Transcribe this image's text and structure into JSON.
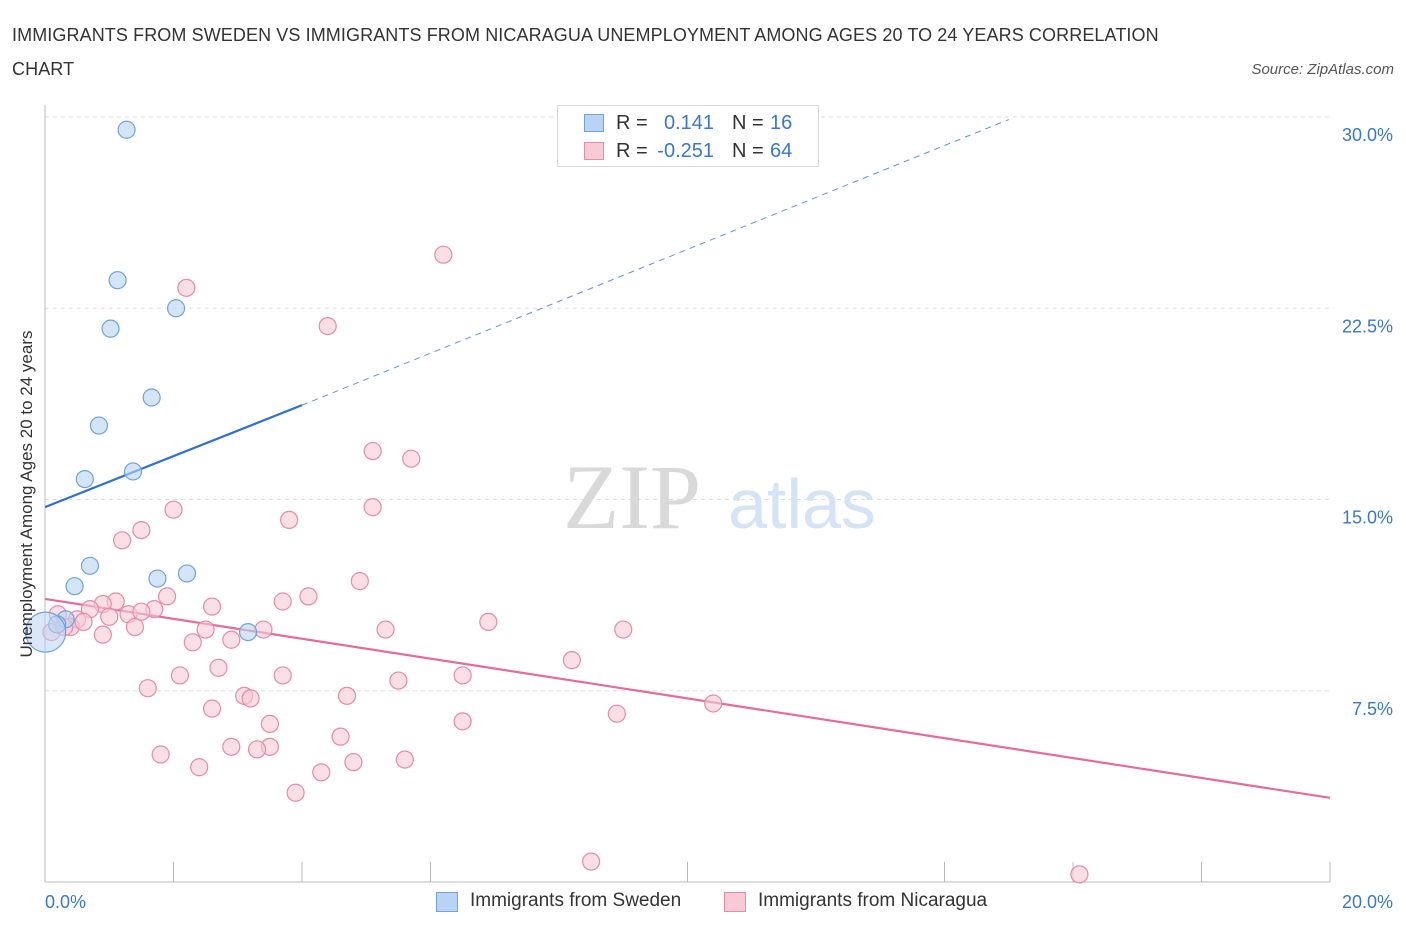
{
  "title": "IMMIGRANTS FROM SWEDEN VS IMMIGRANTS FROM NICARAGUA UNEMPLOYMENT AMONG AGES 20 TO 24 YEARS CORRELATION CHART",
  "source": "Source: ZipAtlas.com",
  "watermark": {
    "zip": "ZIP",
    "atlas": "atlas"
  },
  "legend_top": [
    {
      "r_label": "R =",
      "r_value": "0.141",
      "n_label": "N =",
      "n_value": "16",
      "color": "#6fa3e0",
      "fill": "#b9d3f4"
    },
    {
      "r_label": "R =",
      "r_value": "-0.251",
      "n_label": "N =",
      "n_value": "64",
      "color": "#e88aa8",
      "fill": "#f8c9d7"
    }
  ],
  "legend_bottom": [
    {
      "label": "Immigrants from Sweden",
      "color": "#6fa3e0",
      "fill": "#b9d3f4"
    },
    {
      "label": "Immigrants from Nicaragua",
      "color": "#e88aa8",
      "fill": "#f8c9d7"
    }
  ],
  "chart_data": {
    "type": "scatter",
    "title": "IMMIGRANTS FROM SWEDEN VS IMMIGRANTS FROM NICARAGUA UNEMPLOYMENT AMONG AGES 20 TO 24 YEARS CORRELATION CHART",
    "xlabel": "",
    "ylabel": "Unemployment Among Ages 20 to 24 years",
    "xlim": [
      0,
      20
    ],
    "ylim": [
      0,
      30
    ],
    "x_tick_labels": [
      {
        "value": 0,
        "label": "0.0%"
      },
      {
        "value": 20,
        "label": "20.0%"
      }
    ],
    "y_tick_labels": [
      {
        "value": 7.5,
        "label": "7.5%"
      },
      {
        "value": 15,
        "label": "15.0%"
      },
      {
        "value": 22.5,
        "label": "22.5%"
      },
      {
        "value": 30,
        "label": "30.0%"
      }
    ],
    "x_minor_ticks": [
      2,
      4,
      6,
      10,
      14,
      16,
      18
    ],
    "grid": true,
    "legend_position": "top-center",
    "series": [
      {
        "name": "Immigrants from Sweden",
        "color": "#6fa3e0",
        "fill": "#b9d3f4",
        "trend_color": "#2f6fcd",
        "trend": {
          "x0": 0,
          "y0": 14.7,
          "x1": 4.0,
          "y1": 18.7,
          "x_dash_end": 15.0,
          "y_dash_end": 29.9
        },
        "points": [
          {
            "x": 1.27,
            "y": 29.5
          },
          {
            "x": 1.13,
            "y": 23.6
          },
          {
            "x": 2.04,
            "y": 22.5
          },
          {
            "x": 1.02,
            "y": 21.7
          },
          {
            "x": 1.66,
            "y": 19.0
          },
          {
            "x": 0.84,
            "y": 17.9
          },
          {
            "x": 1.37,
            "y": 16.1
          },
          {
            "x": 0.62,
            "y": 15.8
          },
          {
            "x": 0.7,
            "y": 12.4
          },
          {
            "x": 0.46,
            "y": 11.6
          },
          {
            "x": 1.75,
            "y": 11.9
          },
          {
            "x": 2.21,
            "y": 12.1
          },
          {
            "x": 0.32,
            "y": 10.3
          },
          {
            "x": 0.19,
            "y": 10.1
          },
          {
            "x": 0.01,
            "y": 9.8,
            "large": true
          },
          {
            "x": 3.16,
            "y": 9.8
          }
        ]
      },
      {
        "name": "Immigrants from Nicaragua",
        "color": "#e88aa8",
        "fill": "#f8c9d7",
        "trend_color": "#e56b98",
        "trend": {
          "x0": 0,
          "y0": 11.1,
          "x1": 20.0,
          "y1": 3.3
        },
        "points": [
          {
            "x": 6.2,
            "y": 24.6
          },
          {
            "x": 2.2,
            "y": 23.3
          },
          {
            "x": 4.4,
            "y": 21.8
          },
          {
            "x": 5.1,
            "y": 16.9
          },
          {
            "x": 5.7,
            "y": 16.6
          },
          {
            "x": 2.0,
            "y": 14.6
          },
          {
            "x": 5.1,
            "y": 14.7
          },
          {
            "x": 3.8,
            "y": 14.2
          },
          {
            "x": 1.5,
            "y": 13.8
          },
          {
            "x": 1.2,
            "y": 13.4
          },
          {
            "x": 4.9,
            "y": 11.8
          },
          {
            "x": 1.9,
            "y": 11.2
          },
          {
            "x": 4.1,
            "y": 11.2
          },
          {
            "x": 3.7,
            "y": 11.0
          },
          {
            "x": 1.1,
            "y": 11.0
          },
          {
            "x": 0.9,
            "y": 10.9
          },
          {
            "x": 2.6,
            "y": 10.8
          },
          {
            "x": 1.7,
            "y": 10.7
          },
          {
            "x": 0.7,
            "y": 10.7
          },
          {
            "x": 1.3,
            "y": 10.5
          },
          {
            "x": 0.2,
            "y": 10.5
          },
          {
            "x": 1.0,
            "y": 10.4
          },
          {
            "x": 6.9,
            "y": 10.2
          },
          {
            "x": 0.5,
            "y": 10.3
          },
          {
            "x": 1.4,
            "y": 10.0
          },
          {
            "x": 0.4,
            "y": 10.0
          },
          {
            "x": 2.5,
            "y": 9.9
          },
          {
            "x": 3.4,
            "y": 9.9
          },
          {
            "x": 5.3,
            "y": 9.9
          },
          {
            "x": 0.1,
            "y": 9.8
          },
          {
            "x": 9.0,
            "y": 9.9
          },
          {
            "x": 0.9,
            "y": 9.7
          },
          {
            "x": 2.9,
            "y": 9.5
          },
          {
            "x": 2.3,
            "y": 9.4
          },
          {
            "x": 8.2,
            "y": 8.7
          },
          {
            "x": 2.7,
            "y": 8.4
          },
          {
            "x": 2.1,
            "y": 8.1
          },
          {
            "x": 3.7,
            "y": 8.1
          },
          {
            "x": 6.5,
            "y": 8.1
          },
          {
            "x": 5.5,
            "y": 7.9
          },
          {
            "x": 1.6,
            "y": 7.6
          },
          {
            "x": 3.1,
            "y": 7.3
          },
          {
            "x": 4.7,
            "y": 7.3
          },
          {
            "x": 3.2,
            "y": 7.2
          },
          {
            "x": 10.4,
            "y": 7.0
          },
          {
            "x": 2.6,
            "y": 6.8
          },
          {
            "x": 8.9,
            "y": 6.6
          },
          {
            "x": 6.5,
            "y": 6.3
          },
          {
            "x": 3.5,
            "y": 6.2
          },
          {
            "x": 4.6,
            "y": 5.7
          },
          {
            "x": 2.9,
            "y": 5.3
          },
          {
            "x": 3.5,
            "y": 5.3
          },
          {
            "x": 3.3,
            "y": 5.2
          },
          {
            "x": 1.8,
            "y": 5.0
          },
          {
            "x": 5.6,
            "y": 4.8
          },
          {
            "x": 4.8,
            "y": 4.7
          },
          {
            "x": 2.4,
            "y": 4.5
          },
          {
            "x": 4.3,
            "y": 4.3
          },
          {
            "x": 3.9,
            "y": 3.5
          },
          {
            "x": 8.5,
            "y": 0.8
          },
          {
            "x": 16.1,
            "y": 0.3
          },
          {
            "x": 0.6,
            "y": 10.2
          },
          {
            "x": 1.5,
            "y": 10.6
          },
          {
            "x": 0.3,
            "y": 10.0
          }
        ]
      }
    ]
  }
}
